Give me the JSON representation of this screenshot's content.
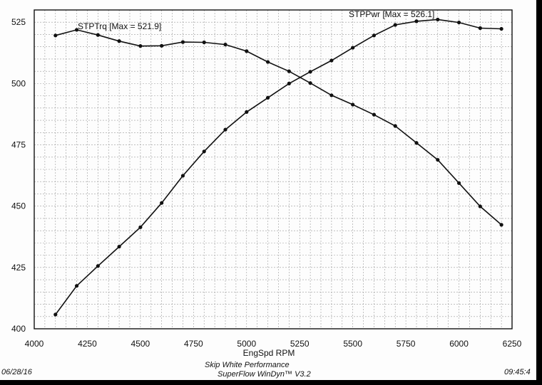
{
  "chart_data": {
    "type": "line",
    "xlabel": "EngSpd RPM",
    "xlim": [
      4000,
      6250
    ],
    "xticks": [
      4000,
      4250,
      4500,
      4750,
      5000,
      5250,
      5500,
      5750,
      6000,
      6250
    ],
    "ylim": [
      400,
      530
    ],
    "yticks": [
      400,
      425,
      450,
      475,
      500,
      525
    ],
    "grid": true,
    "x": [
      4100,
      4200,
      4300,
      4400,
      4500,
      4600,
      4700,
      4800,
      4900,
      5000,
      5100,
      5200,
      5300,
      5400,
      5500,
      5600,
      5700,
      5800,
      5900,
      6000,
      6100,
      6200
    ],
    "series": [
      {
        "name": "STPTrq",
        "label": "STPTrq [Max = 521.9]",
        "values": [
          519.6,
          521.9,
          519.8,
          517.3,
          515.3,
          515.4,
          516.9,
          516.8,
          515.9,
          513.2,
          508.8,
          505.0,
          500.2,
          495.2,
          491.4,
          487.3,
          482.7,
          475.8,
          468.9,
          459.4,
          449.9,
          442.4
        ]
      },
      {
        "name": "STPPwr",
        "label": "STPPwr [Max = 526.1]",
        "values": [
          405.8,
          417.5,
          425.6,
          433.5,
          441.4,
          451.3,
          462.4,
          472.3,
          481.2,
          488.4,
          494.2,
          500.0,
          504.8,
          509.4,
          514.6,
          519.6,
          523.9,
          525.4,
          526.1,
          524.9,
          522.6,
          522.3
        ]
      }
    ],
    "line_color": "#111111"
  },
  "footer": {
    "date": "06/28/16",
    "company": "Skip White Performance",
    "software": "SuperFlow WinDyn™ V3.2",
    "time": "09:45:4"
  }
}
